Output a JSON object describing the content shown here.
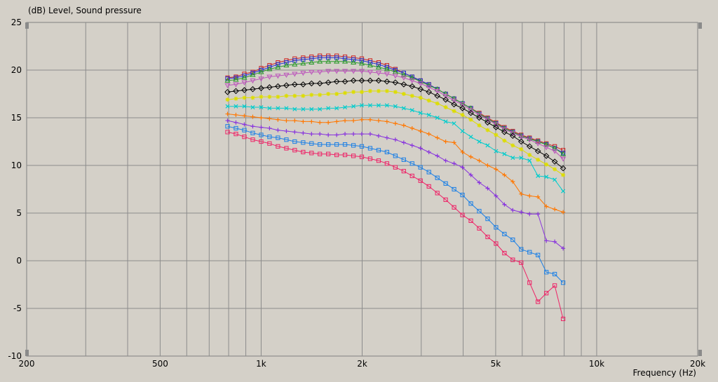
{
  "chart_data": {
    "type": "line",
    "ylabel": "(dB)  Level, Sound pressure",
    "xlabel": "Frequency  (Hz)",
    "xscale": "log",
    "xlim": [
      200,
      20000
    ],
    "ylim": [
      -10,
      25
    ],
    "grid": true,
    "xticks": [
      {
        "value": 200,
        "label": "200"
      },
      {
        "value": 500,
        "label": "500"
      },
      {
        "value": 1000,
        "label": "1k"
      },
      {
        "value": 2000,
        "label": "2k"
      },
      {
        "value": 5000,
        "label": "5k"
      },
      {
        "value": 10000,
        "label": "10k"
      },
      {
        "value": 20000,
        "label": "20k"
      }
    ],
    "yticks": [
      {
        "value": 25,
        "label": "25"
      },
      {
        "value": 20,
        "label": "20"
      },
      {
        "value": 15,
        "label": "15"
      },
      {
        "value": 10,
        "label": "10"
      },
      {
        "value": 5,
        "label": "5"
      },
      {
        "value": 0,
        "label": "0"
      },
      {
        "value": -5,
        "label": "-5"
      },
      {
        "value": -10,
        "label": "-10"
      }
    ],
    "x": [
      794,
      841,
      891,
      944,
      1000,
      1059,
      1122,
      1189,
      1259,
      1334,
      1413,
      1496,
      1585,
      1679,
      1778,
      1884,
      1995,
      2113,
      2239,
      2371,
      2512,
      2661,
      2818,
      2985,
      3162,
      3350,
      3548,
      3758,
      3981,
      4217,
      4467,
      4732,
      5012,
      5309,
      5623,
      5957,
      6310,
      6683,
      7079,
      7499,
      7943
    ],
    "series": [
      {
        "color": "#cc2222",
        "marker": "square",
        "values": [
          19.2,
          19.3,
          19.6,
          19.8,
          20.2,
          20.5,
          20.8,
          21.0,
          21.2,
          21.3,
          21.4,
          21.5,
          21.5,
          21.5,
          21.4,
          21.3,
          21.2,
          21.0,
          20.8,
          20.5,
          20.1,
          19.7,
          19.3,
          18.9,
          18.5,
          18.0,
          17.5,
          17.0,
          16.5,
          16.0,
          15.5,
          15.0,
          14.5,
          14.0,
          13.6,
          13.2,
          12.9,
          12.6,
          12.3,
          12.0,
          11.6
        ]
      },
      {
        "color": "#2233cc",
        "marker": "square",
        "values": [
          19.1,
          19.2,
          19.4,
          19.7,
          20.0,
          20.3,
          20.6,
          20.8,
          21.0,
          21.1,
          21.2,
          21.3,
          21.3,
          21.3,
          21.2,
          21.1,
          21.0,
          20.8,
          20.6,
          20.3,
          20.0,
          19.7,
          19.3,
          18.9,
          18.5,
          18.0,
          17.5,
          17.0,
          16.5,
          16.0,
          15.4,
          14.9,
          14.4,
          13.9,
          13.5,
          13.1,
          12.8,
          12.5,
          12.2,
          11.8,
          11.3
        ]
      },
      {
        "color": "#2a9a2a",
        "marker": "triangle-up",
        "values": [
          18.9,
          19.0,
          19.2,
          19.5,
          19.8,
          20.1,
          20.3,
          20.5,
          20.6,
          20.7,
          20.8,
          20.9,
          20.9,
          20.9,
          20.9,
          20.8,
          20.7,
          20.5,
          20.3,
          20.1,
          19.8,
          19.5,
          19.2,
          18.8,
          18.4,
          18.0,
          17.5,
          17.0,
          16.5,
          16.0,
          15.4,
          14.9,
          14.4,
          13.9,
          13.5,
          13.1,
          12.8,
          12.5,
          12.2,
          11.8,
          11.2
        ]
      },
      {
        "color": "#bb55bb",
        "marker": "triangle-down",
        "values": [
          18.4,
          18.5,
          18.7,
          18.9,
          19.1,
          19.3,
          19.4,
          19.5,
          19.6,
          19.7,
          19.8,
          19.8,
          19.9,
          19.9,
          19.9,
          19.9,
          19.9,
          19.8,
          19.7,
          19.6,
          19.4,
          19.2,
          18.9,
          18.6,
          18.2,
          17.8,
          17.3,
          16.8,
          16.4,
          15.8,
          15.3,
          14.8,
          14.3,
          13.8,
          13.4,
          13.0,
          12.7,
          12.3,
          11.9,
          11.5,
          10.7
        ]
      },
      {
        "color": "#000000",
        "marker": "diamond",
        "values": [
          17.7,
          17.8,
          17.9,
          18.0,
          18.1,
          18.2,
          18.3,
          18.4,
          18.5,
          18.5,
          18.6,
          18.6,
          18.7,
          18.8,
          18.8,
          18.9,
          18.9,
          18.9,
          18.9,
          18.8,
          18.7,
          18.5,
          18.3,
          18.0,
          17.7,
          17.3,
          16.9,
          16.4,
          16.0,
          15.5,
          15.0,
          14.5,
          14.0,
          13.5,
          13.1,
          12.5,
          12.0,
          11.5,
          11.0,
          10.4,
          9.7
        ]
      },
      {
        "color": "#dddd00",
        "marker": "star",
        "values": [
          16.9,
          17.0,
          17.1,
          17.1,
          17.2,
          17.2,
          17.2,
          17.3,
          17.3,
          17.3,
          17.4,
          17.4,
          17.5,
          17.5,
          17.6,
          17.7,
          17.7,
          17.8,
          17.8,
          17.8,
          17.7,
          17.5,
          17.3,
          17.1,
          16.8,
          16.5,
          16.1,
          15.7,
          15.3,
          14.8,
          14.2,
          13.7,
          13.2,
          12.6,
          12.1,
          11.7,
          11.1,
          10.6,
          10.1,
          9.6,
          9.0
        ]
      },
      {
        "color": "#00cccc",
        "marker": "x",
        "values": [
          16.2,
          16.2,
          16.2,
          16.1,
          16.1,
          16.0,
          16.0,
          16.0,
          15.9,
          15.9,
          15.9,
          15.9,
          16.0,
          16.0,
          16.1,
          16.2,
          16.3,
          16.3,
          16.3,
          16.3,
          16.2,
          16.0,
          15.8,
          15.5,
          15.3,
          15.0,
          14.6,
          14.4,
          13.6,
          13.0,
          12.5,
          12.1,
          11.5,
          11.2,
          10.8,
          10.8,
          10.5,
          8.9,
          8.8,
          8.5,
          7.3
        ]
      },
      {
        "color": "#ff7700",
        "marker": "plus",
        "values": [
          15.4,
          15.3,
          15.2,
          15.1,
          15.0,
          14.9,
          14.8,
          14.7,
          14.7,
          14.6,
          14.6,
          14.5,
          14.5,
          14.6,
          14.7,
          14.7,
          14.8,
          14.8,
          14.7,
          14.6,
          14.4,
          14.2,
          13.9,
          13.6,
          13.3,
          12.9,
          12.5,
          12.4,
          11.4,
          10.9,
          10.5,
          10.0,
          9.6,
          9.0,
          8.3,
          7.0,
          6.8,
          6.7,
          5.7,
          5.4,
          5.1
        ]
      },
      {
        "color": "#8833dd",
        "marker": "plus",
        "values": [
          14.7,
          14.5,
          14.3,
          14.1,
          14.0,
          13.9,
          13.7,
          13.6,
          13.5,
          13.4,
          13.3,
          13.3,
          13.2,
          13.2,
          13.3,
          13.3,
          13.3,
          13.3,
          13.1,
          12.9,
          12.7,
          12.4,
          12.1,
          11.8,
          11.4,
          11.0,
          10.5,
          10.2,
          9.8,
          9.0,
          8.2,
          7.6,
          6.8,
          5.9,
          5.3,
          5.1,
          4.9,
          4.9,
          2.1,
          2.0,
          1.3
        ]
      },
      {
        "color": "#1a7fe6",
        "marker": "square",
        "values": [
          14.1,
          13.9,
          13.7,
          13.4,
          13.2,
          13.0,
          12.9,
          12.7,
          12.5,
          12.4,
          12.3,
          12.2,
          12.2,
          12.2,
          12.2,
          12.1,
          12.0,
          11.8,
          11.6,
          11.4,
          11.0,
          10.6,
          10.2,
          9.8,
          9.3,
          8.7,
          8.1,
          7.5,
          6.9,
          6.0,
          5.2,
          4.4,
          3.5,
          2.8,
          2.2,
          1.2,
          0.9,
          0.6,
          -1.2,
          -1.4,
          -2.3
        ]
      },
      {
        "color": "#ee2266",
        "marker": "square",
        "values": [
          13.5,
          13.3,
          13.0,
          12.7,
          12.5,
          12.3,
          12.0,
          11.8,
          11.6,
          11.4,
          11.3,
          11.2,
          11.2,
          11.1,
          11.1,
          11.0,
          10.9,
          10.7,
          10.5,
          10.2,
          9.8,
          9.4,
          8.9,
          8.4,
          7.8,
          7.1,
          6.4,
          5.6,
          4.8,
          4.2,
          3.4,
          2.5,
          1.8,
          0.8,
          0.1,
          -0.2,
          -2.3,
          -4.3,
          -3.4,
          -2.6,
          -6.1
        ]
      }
    ]
  }
}
